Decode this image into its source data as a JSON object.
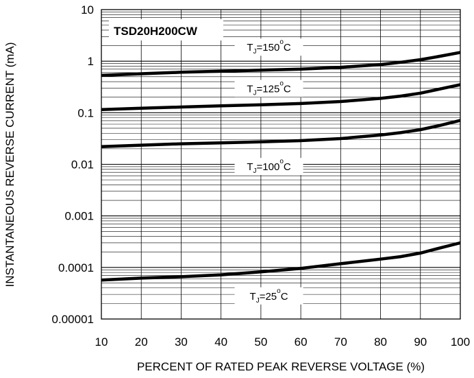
{
  "chart_data": {
    "type": "line",
    "part_number": "TSD20H200CW",
    "xlabel": "PERCENT OF RATED PEAK REVERSE VOLTAGE (%)",
    "ylabel": "INSTANTANEOUS REVERSE CURRENT (mA)",
    "xlim": [
      10,
      100
    ],
    "ylim": [
      1e-05,
      10
    ],
    "yscale": "log",
    "grid": true,
    "x_ticks": [
      10,
      20,
      30,
      40,
      50,
      60,
      70,
      80,
      90,
      100
    ],
    "x_tick_labels": [
      "10",
      "20",
      "30",
      "40",
      "50",
      "60",
      "70",
      "80",
      "90",
      "100"
    ],
    "y_ticks": [
      1e-05,
      0.0001,
      0.001,
      0.01,
      0.1,
      1,
      10
    ],
    "y_tick_labels": [
      "0.00001",
      "0.0001",
      "0.001",
      "0.01",
      "0.1",
      "1",
      "10"
    ],
    "x": [
      10,
      20,
      30,
      40,
      50,
      60,
      70,
      80,
      85,
      90,
      95,
      100
    ],
    "series": [
      {
        "name": "TJ=150°C",
        "label_main": "T",
        "label_sub": "J",
        "label_value": "=150",
        "label_sup": "o",
        "label_unit": "C",
        "label_at": [
          52,
          1.9
        ],
        "values": [
          0.53,
          0.57,
          0.61,
          0.64,
          0.67,
          0.7,
          0.76,
          0.86,
          0.95,
          1.07,
          1.25,
          1.48
        ]
      },
      {
        "name": "TJ=125°C",
        "label_main": "T",
        "label_sub": "J",
        "label_value": "=125",
        "label_sup": "o",
        "label_unit": "C",
        "label_at": [
          52,
          0.3
        ],
        "values": [
          0.115,
          0.122,
          0.129,
          0.136,
          0.143,
          0.151,
          0.165,
          0.19,
          0.21,
          0.24,
          0.29,
          0.35
        ]
      },
      {
        "name": "TJ=100°C",
        "label_main": "T",
        "label_sub": "J",
        "label_value": "=100",
        "label_sup": "o",
        "label_unit": "C",
        "label_at": [
          52,
          0.0092
        ],
        "values": [
          0.022,
          0.0235,
          0.025,
          0.026,
          0.0272,
          0.0288,
          0.0315,
          0.037,
          0.041,
          0.047,
          0.057,
          0.071
        ]
      },
      {
        "name": "TJ=25°C",
        "label_main": "T",
        "label_sub": "J",
        "label_value": "=25",
        "label_sup": "o",
        "label_unit": "C",
        "label_at": [
          52,
          2.85e-05
        ],
        "values": [
          5.7e-05,
          6.2e-05,
          6.6e-05,
          7.2e-05,
          8.2e-05,
          9.6e-05,
          0.000118,
          0.000145,
          0.000162,
          0.00019,
          0.00024,
          0.0003
        ]
      }
    ]
  }
}
